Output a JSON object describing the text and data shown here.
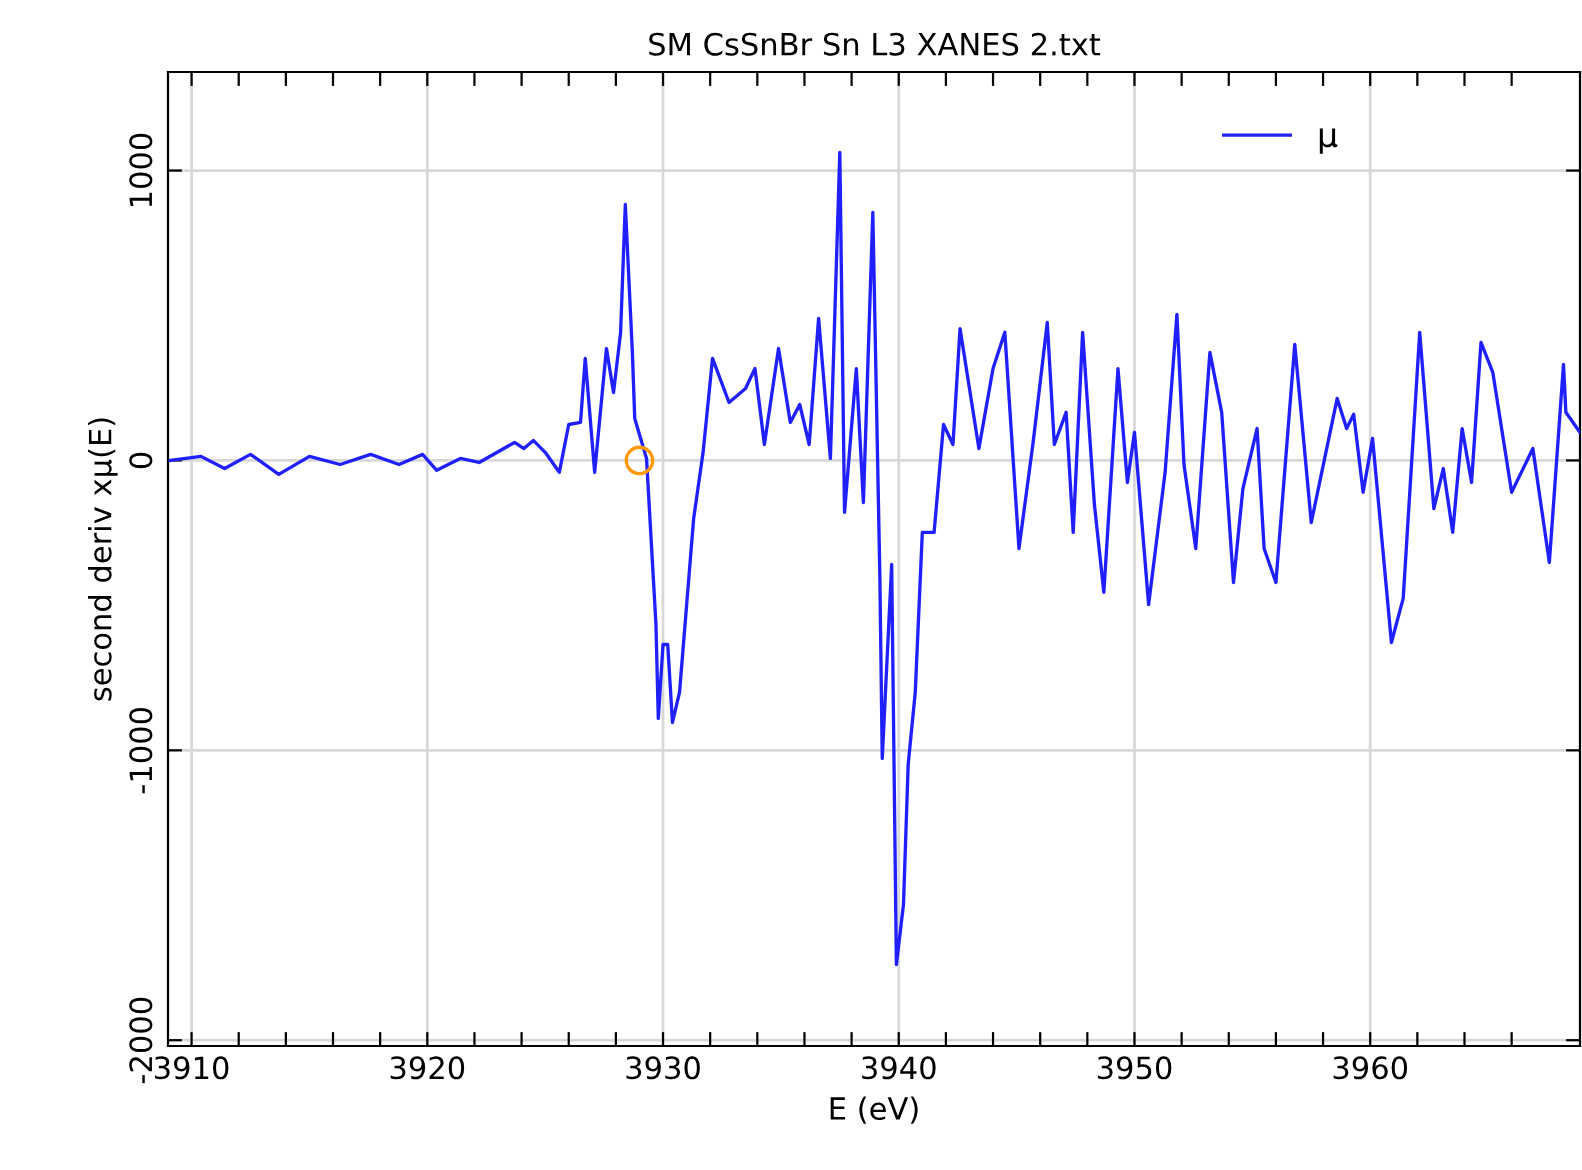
{
  "chart_data": {
    "type": "line",
    "title": "SM CsSnBr Sn L3 XANES 2.txt",
    "xlabel": "E (eV)",
    "ylabel": "second deriv xμ(E)",
    "xlim": [
      3909,
      3968.9
    ],
    "ylim": [
      -2020,
      1340
    ],
    "xticks": [
      3910,
      {
        "value": 3912,
        "label": null
      },
      {
        "value": 3914,
        "label": null
      },
      {
        "value": 3916,
        "label": null
      },
      {
        "value": 3918,
        "label": null
      },
      3920,
      {
        "value": 3922,
        "label": null
      },
      {
        "value": 3924,
        "label": null
      },
      {
        "value": 3926,
        "label": null
      },
      {
        "value": 3928,
        "label": null
      },
      3930,
      {
        "value": 3932,
        "label": null
      },
      {
        "value": 3934,
        "label": null
      },
      {
        "value": 3936,
        "label": null
      },
      {
        "value": 3938,
        "label": null
      },
      3940,
      {
        "value": 3942,
        "label": null
      },
      {
        "value": 3944,
        "label": null
      },
      {
        "value": 3946,
        "label": null
      },
      {
        "value": 3948,
        "label": null
      },
      3950,
      {
        "value": 3952,
        "label": null
      },
      {
        "value": 3954,
        "label": null
      },
      {
        "value": 3956,
        "label": null
      },
      {
        "value": 3958,
        "label": null
      },
      3960,
      {
        "value": 3962,
        "label": null
      },
      {
        "value": 3964,
        "label": null
      },
      {
        "value": 3966,
        "label": null
      }
    ],
    "yticks": [
      -2000,
      -1000,
      0,
      1000
    ],
    "grid": true,
    "legend": "top right",
    "marker": "none",
    "line_style": "solid",
    "series": [
      {
        "name": "μ",
        "color": "#2020ff",
        "x": [
          3909.1,
          3910.4,
          3911.4,
          3912.5,
          3913.7,
          3915.0,
          3916.3,
          3917.6,
          3918.8,
          3919.8,
          3920.4,
          3921.4,
          3922.2,
          3923.7,
          3924.1,
          3924.5,
          3925.0,
          3925.6,
          3926.0,
          3926.5,
          3926.7,
          3927.1,
          3927.6,
          3927.9,
          3928.2,
          3928.4,
          3928.7,
          3928.8,
          3929.3,
          3929.7,
          3929.8,
          3930.0,
          3930.2,
          3930.4,
          3930.7,
          3931.3,
          3931.7,
          3932.1,
          3932.8,
          3933.5,
          3933.9,
          3934.3,
          3934.9,
          3935.4,
          3935.8,
          3936.2,
          3936.6,
          3937.1,
          3937.5,
          3937.7,
          3938.2,
          3938.5,
          3938.9,
          3939.2,
          3939.3,
          3939.7,
          3939.9,
          3940.2,
          3940.4,
          3940.7,
          3941.0,
          3941.5,
          3941.9,
          3942.3,
          3942.6,
          3943.4,
          3944.0,
          3944.5,
          3945.1,
          3945.7,
          3946.3,
          3946.6,
          3947.1,
          3947.4,
          3947.8,
          3948.3,
          3948.7,
          3949.3,
          3949.7,
          3950.0,
          3950.6,
          3951.3,
          3951.8,
          3952.1,
          3952.6,
          3953.2,
          3953.7,
          3954.2,
          3954.6,
          3955.2,
          3955.5,
          3956.0,
          3956.8,
          3957.5,
          3958.6,
          3959.0,
          3959.3,
          3959.7,
          3960.1,
          3960.9,
          3961.4,
          3962.1,
          3962.7,
          3963.1,
          3963.5,
          3963.9,
          3964.3,
          3964.7,
          3965.2,
          3966.0,
          3966.9,
          3967.6,
          3968.2,
          3968.3,
          3968.9
        ],
        "values": [
          0,
          14,
          -28,
          21,
          -48,
          14,
          -14,
          21,
          -14,
          21,
          -34,
          7,
          -7,
          62,
          41,
          69,
          28,
          -41,
          124,
          131,
          352,
          -41,
          386,
          234,
          441,
          883,
          372,
          145,
          7,
          -566,
          -890,
          -635,
          -635,
          -904,
          -800,
          -200,
          28,
          352,
          200,
          248,
          317,
          55,
          386,
          131,
          193,
          55,
          490,
          7,
          1063,
          -179,
          317,
          -145,
          856,
          -407,
          -1028,
          -359,
          -1739,
          -1532,
          -1049,
          -800,
          -248,
          -248,
          124,
          55,
          455,
          41,
          317,
          442,
          -304,
          62,
          476,
          55,
          166,
          -248,
          442,
          -152,
          -455,
          317,
          -76,
          97,
          -497,
          -41,
          504,
          -14,
          -304,
          373,
          166,
          -421,
          -97,
          110,
          -304,
          -421,
          400,
          -214,
          214,
          110,
          159,
          -110,
          76,
          -628,
          -476,
          442,
          -166,
          -28,
          -248,
          110,
          -76,
          407,
          304,
          -110,
          41,
          -352,
          331,
          166,
          97
        ]
      },
      {
        "type": "scatter",
        "color": "#ff9900",
        "marker": "circle",
        "x": [
          3929.0
        ],
        "values": [
          0
        ]
      }
    ]
  }
}
